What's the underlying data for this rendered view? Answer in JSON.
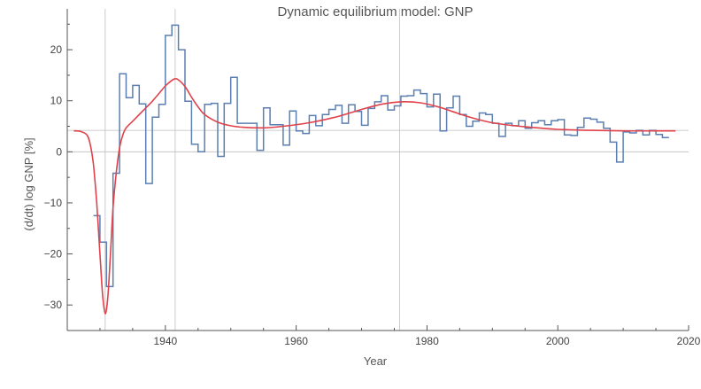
{
  "chart_data": {
    "type": "line",
    "title": "Dynamic equilibrium model: GNP",
    "xlabel": "Year",
    "ylabel": "(d/dt) log GNP [%]",
    "xlim": [
      1925,
      2020
    ],
    "ylim": [
      -35,
      28
    ],
    "x_ticks": [
      1940,
      1960,
      1980,
      2000,
      2020
    ],
    "y_ticks": [
      -30,
      -20,
      -10,
      0,
      10,
      20
    ],
    "grid": {
      "vertical": [
        1930.8,
        1941.5,
        1975.8
      ],
      "horizontal": [
        0,
        4.2
      ]
    },
    "colors": {
      "data": "#5b7fb0",
      "model": "#e0424b",
      "grid": "#bdbdbd"
    },
    "series": [
      {
        "style": "step",
        "x": [
          1929,
          1930,
          1931,
          1932,
          1933,
          1934,
          1935,
          1936,
          1937,
          1938,
          1939,
          1940,
          1941,
          1942,
          1943,
          1944,
          1945,
          1946,
          1947,
          1948,
          1949,
          1950,
          1951,
          1952,
          1953,
          1954,
          1955,
          1956,
          1957,
          1958,
          1959,
          1960,
          1961,
          1962,
          1963,
          1964,
          1965,
          1966,
          1967,
          1968,
          1969,
          1970,
          1971,
          1972,
          1973,
          1974,
          1975,
          1976,
          1977,
          1978,
          1979,
          1980,
          1981,
          1982,
          1983,
          1984,
          1985,
          1986,
          1987,
          1988,
          1989,
          1990,
          1991,
          1992,
          1993,
          1994,
          1995,
          1996,
          1997,
          1998,
          1999,
          2000,
          2001,
          2002,
          2003,
          2004,
          2005,
          2006,
          2007,
          2008,
          2009,
          2010,
          2011,
          2012,
          2013,
          2014,
          2015,
          2016
        ],
        "values": [
          -12.5,
          -17.7,
          -26.4,
          -4.2,
          15.3,
          10.6,
          13.0,
          9.4,
          -6.2,
          6.8,
          9.3,
          22.8,
          24.8,
          20.0,
          9.9,
          1.5,
          0.0,
          9.3,
          9.5,
          -0.9,
          9.5,
          14.6,
          5.6,
          5.6,
          5.6,
          0.3,
          8.6,
          5.3,
          5.3,
          1.3,
          8.0,
          4.1,
          3.6,
          7.1,
          5.1,
          7.3,
          8.3,
          9.1,
          5.6,
          9.2,
          7.9,
          5.2,
          8.5,
          9.8,
          11.0,
          8.2,
          9.0,
          10.9,
          11.0,
          12.1,
          11.4,
          8.8,
          11.3,
          4.1,
          8.6,
          10.9,
          7.3,
          5.0,
          6.0,
          7.6,
          7.3,
          5.6,
          3.0,
          5.6,
          5.1,
          6.1,
          4.6,
          5.7,
          6.1,
          5.3,
          6.1,
          6.3,
          3.3,
          3.2,
          4.8,
          6.6,
          6.4,
          5.8,
          4.6,
          1.9,
          -2.0,
          3.9,
          3.7,
          4.2,
          3.3,
          4.2,
          3.4,
          2.8
        ]
      },
      {
        "style": "smooth",
        "x": [
          1926,
          1927,
          1928,
          1928.5,
          1929,
          1929.5,
          1930,
          1930.4,
          1930.8,
          1931.2,
          1931.6,
          1932,
          1932.5,
          1933,
          1933.5,
          1934,
          1935,
          1936,
          1937,
          1938,
          1939,
          1940,
          1941,
          1941.5,
          1942,
          1943,
          1944,
          1945,
          1946,
          1948,
          1950,
          1952,
          1955,
          1958,
          1962,
          1966,
          1970,
          1973,
          1976,
          1979,
          1982,
          1986,
          1990,
          1995,
          2000,
          2005,
          2010,
          2015,
          2018
        ],
        "values": [
          4.1,
          4.0,
          3.3,
          1.5,
          -2.5,
          -10.0,
          -20.0,
          -28.0,
          -31.7,
          -28.5,
          -20.0,
          -11.0,
          -4.0,
          0.8,
          3.3,
          4.7,
          6.0,
          7.3,
          8.6,
          9.9,
          11.4,
          12.9,
          14.0,
          14.3,
          14.1,
          12.8,
          10.7,
          8.8,
          7.3,
          5.8,
          5.1,
          4.8,
          4.7,
          5.0,
          5.7,
          6.8,
          8.3,
          9.3,
          9.8,
          9.6,
          8.7,
          7.0,
          5.7,
          4.9,
          4.4,
          4.2,
          4.1,
          4.1,
          4.1
        ]
      }
    ]
  }
}
